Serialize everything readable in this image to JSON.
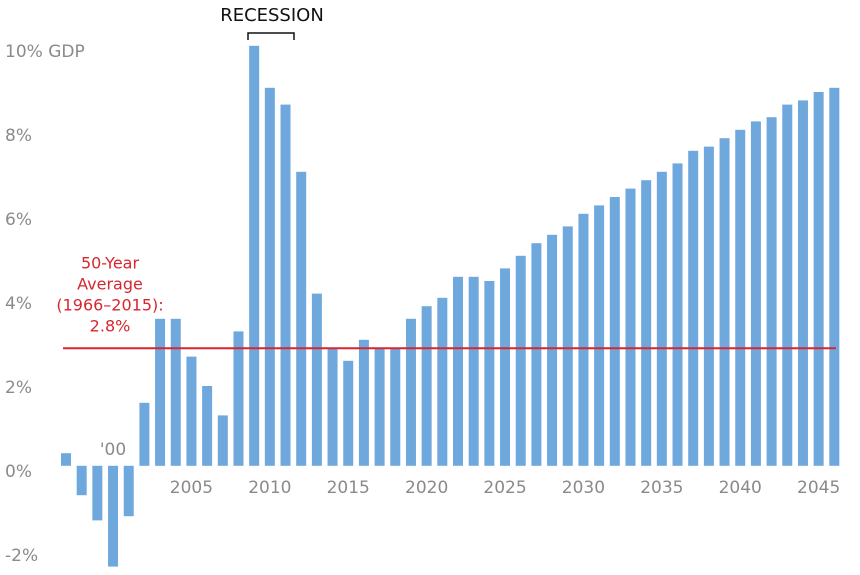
{
  "chart_data": {
    "type": "bar",
    "categories": [
      null,
      null,
      null,
      "'00",
      null,
      null,
      null,
      null,
      "2005",
      null,
      null,
      null,
      null,
      "2010",
      null,
      null,
      null,
      null,
      "2015",
      null,
      null,
      null,
      null,
      "2020",
      null,
      null,
      null,
      null,
      "2025",
      null,
      null,
      null,
      null,
      "2030",
      null,
      null,
      null,
      null,
      "2035",
      null,
      null,
      null,
      null,
      "2040",
      null,
      null,
      null,
      null,
      "2045",
      null
    ],
    "values": [
      0.3,
      -0.7,
      -1.3,
      -2.4,
      -1.2,
      1.5,
      3.5,
      3.5,
      2.6,
      1.9,
      1.2,
      3.2,
      10.0,
      9.0,
      8.6,
      7.0,
      4.1,
      2.8,
      2.5,
      3.0,
      2.8,
      2.8,
      3.5,
      3.8,
      4.0,
      4.5,
      4.5,
      4.4,
      4.7,
      5.0,
      5.3,
      5.5,
      5.7,
      6.0,
      6.2,
      6.4,
      6.6,
      6.8,
      7.0,
      7.2,
      7.5,
      7.6,
      7.8,
      8.0,
      8.2,
      8.3,
      8.6,
      8.7,
      8.9,
      9.0
    ],
    "color": "#6fa8dc",
    "ylim": [
      -2.6,
      10.4
    ],
    "yticks": [
      {
        "value": -2,
        "label": "-2%"
      },
      {
        "value": 0,
        "label": "0%"
      },
      {
        "value": 2,
        "label": "2%"
      },
      {
        "value": 4,
        "label": "4%"
      },
      {
        "value": 6,
        "label": "6%"
      },
      {
        "value": 8,
        "label": "8%"
      },
      {
        "value": 10,
        "label": "10% GDP"
      }
    ],
    "grid": false,
    "average": {
      "value": 2.8,
      "label_lines": [
        "50-Year",
        "Average",
        "(1966–2015):"
      ],
      "value_label": "2.8%",
      "color": "#d9262e"
    },
    "recession": {
      "label": "RECESSION"
    }
  }
}
